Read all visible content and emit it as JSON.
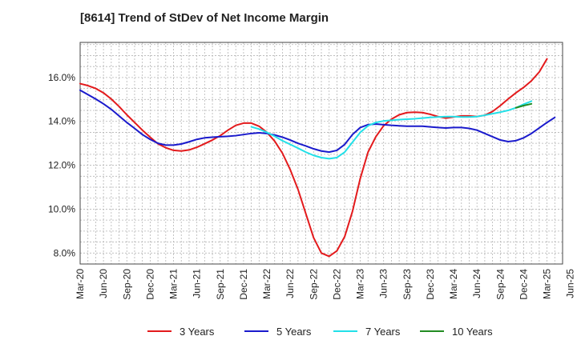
{
  "chart_data": {
    "type": "line",
    "title": "[8614]  Trend of StDev of Net Income Margin",
    "xlabel": "",
    "ylabel": "",
    "ylim": [
      7.5,
      17.6
    ],
    "y_ticks": [
      8.0,
      10.0,
      12.0,
      14.0,
      16.0
    ],
    "y_tick_labels": [
      "8.0%",
      "10.0%",
      "12.0%",
      "14.0%",
      "16.0%"
    ],
    "x_tick_labels": [
      "Mar-20",
      "Jun-20",
      "Sep-20",
      "Dec-20",
      "Mar-21",
      "Jun-21",
      "Sep-21",
      "Dec-21",
      "Mar-22",
      "Jun-22",
      "Sep-22",
      "Dec-22",
      "Mar-23",
      "Jun-23",
      "Sep-23",
      "Dec-23",
      "Mar-24",
      "Jun-24",
      "Sep-24",
      "Dec-24",
      "Mar-25",
      "Jun-25"
    ],
    "grid": true,
    "legend_position": "bottom",
    "series": [
      {
        "name": "3 Years",
        "color": "#e31a1c",
        "start_index": 0,
        "values": [
          15.72,
          15.63,
          15.5,
          15.3,
          15.02,
          14.68,
          14.3,
          13.95,
          13.6,
          13.28,
          12.98,
          12.8,
          12.68,
          12.65,
          12.7,
          12.82,
          12.98,
          13.15,
          13.35,
          13.6,
          13.82,
          13.92,
          13.92,
          13.78,
          13.5,
          13.1,
          12.55,
          11.8,
          10.9,
          9.8,
          8.7,
          8.0,
          7.85,
          8.1,
          8.75,
          9.9,
          11.4,
          12.6,
          13.3,
          13.8,
          14.1,
          14.3,
          14.4,
          14.42,
          14.4,
          14.32,
          14.22,
          14.15,
          14.2,
          14.25,
          14.25,
          14.22,
          14.28,
          14.45,
          14.72,
          15.02,
          15.3,
          15.55,
          15.85,
          16.25,
          16.85
        ]
      },
      {
        "name": "5 Years",
        "color": "#1a1acc",
        "start_index": 0,
        "values": [
          15.42,
          15.22,
          15.02,
          14.8,
          14.55,
          14.25,
          13.95,
          13.68,
          13.4,
          13.18,
          13.0,
          12.92,
          12.92,
          12.97,
          13.07,
          13.18,
          13.25,
          13.28,
          13.3,
          13.32,
          13.35,
          13.4,
          13.45,
          13.48,
          13.45,
          13.38,
          13.28,
          13.15,
          13.0,
          12.88,
          12.75,
          12.65,
          12.6,
          12.68,
          12.95,
          13.4,
          13.72,
          13.85,
          13.88,
          13.85,
          13.82,
          13.8,
          13.78,
          13.78,
          13.78,
          13.75,
          13.72,
          13.7,
          13.72,
          13.72,
          13.68,
          13.6,
          13.45,
          13.3,
          13.15,
          13.08,
          13.12,
          13.25,
          13.45,
          13.7,
          13.95,
          14.18
        ]
      },
      {
        "name": "7 Years",
        "color": "#22e0e8",
        "start_index": 22,
        "values": [
          13.75,
          13.65,
          13.5,
          13.32,
          13.12,
          12.95,
          12.78,
          12.6,
          12.45,
          12.35,
          12.3,
          12.35,
          12.6,
          13.05,
          13.5,
          13.8,
          13.95,
          14.02,
          14.05,
          14.08,
          14.1,
          14.12,
          14.15,
          14.18,
          14.2,
          14.22,
          14.22,
          14.2,
          14.2,
          14.22,
          14.28,
          14.35,
          14.42,
          14.5,
          14.62,
          14.78,
          14.92
        ]
      },
      {
        "name": "10 Years",
        "color": "#228b22",
        "start_index": 56,
        "values": [
          14.62,
          14.72,
          14.8
        ]
      }
    ]
  }
}
